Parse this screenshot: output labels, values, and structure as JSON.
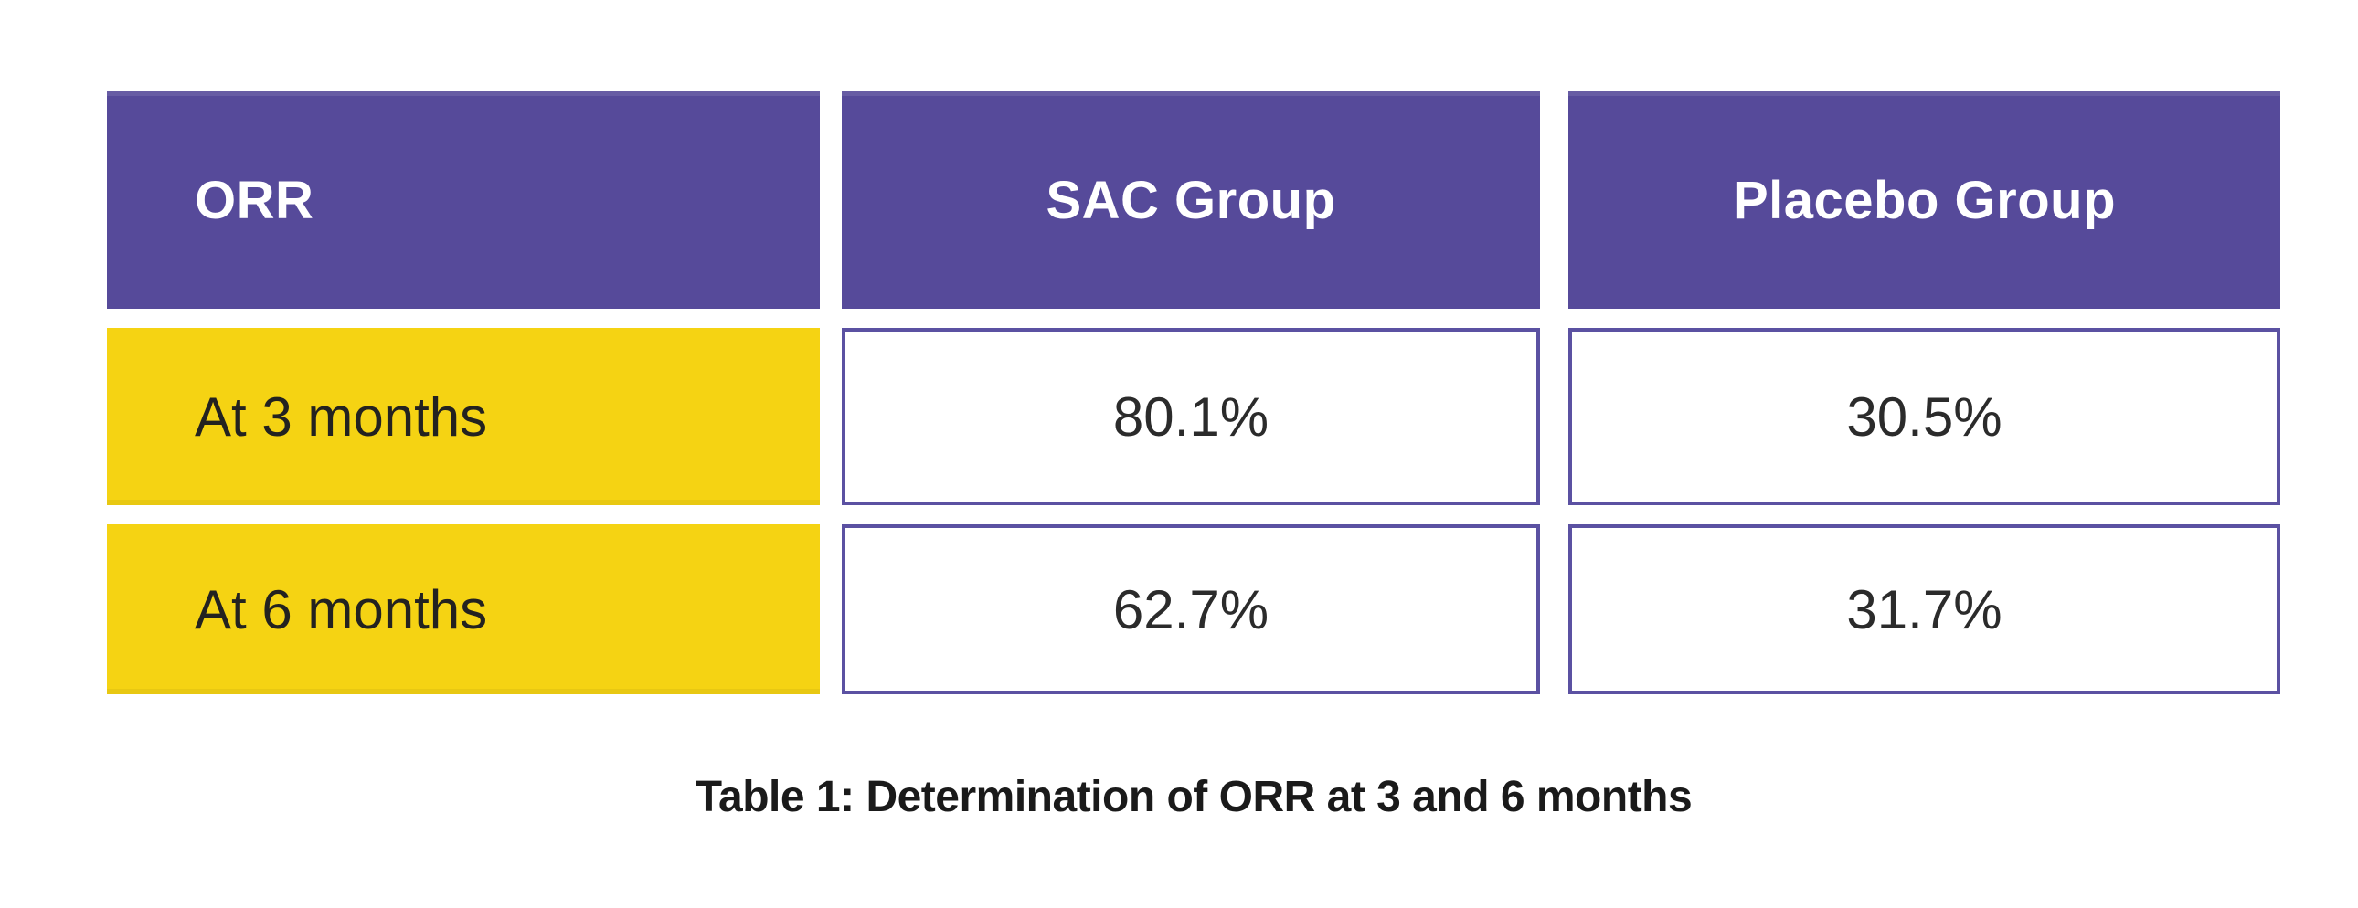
{
  "figure": {
    "caption": "Table 1: Determination of ORR at 3 and 6 months"
  },
  "table": {
    "headers": [
      {
        "label": "ORR"
      },
      {
        "label": "SAC Group"
      },
      {
        "label": "Placebo Group"
      }
    ],
    "rows": [
      {
        "label": "At 3 months",
        "values": [
          "80.1%",
          "30.5%"
        ]
      },
      {
        "label": "At 6 months",
        "values": [
          "62.7%",
          "31.7%"
        ]
      }
    ]
  },
  "colors": {
    "header_bg": "#564a9a",
    "header_text": "#ffffff",
    "row_label_bg": "#f5d313",
    "value_cell_bg": "#ffffff",
    "value_cell_border": "#5b51a2",
    "body_text": "#2b2b2b",
    "caption_text": "#1a1a1a",
    "background": "#ffffff"
  },
  "chart_data": {
    "type": "table",
    "title": "Table 1: Determination of ORR at 3 and 6 months",
    "columns": [
      "ORR",
      "SAC Group",
      "Placebo Group"
    ],
    "rows": [
      [
        "At 3 months",
        "80.1%",
        "30.5%"
      ],
      [
        "At 6 months",
        "62.7%",
        "31.7%"
      ]
    ],
    "series": [
      {
        "name": "SAC Group",
        "categories": [
          "At 3 months",
          "At 6 months"
        ],
        "values": [
          80.1,
          62.7
        ],
        "unit": "%"
      },
      {
        "name": "Placebo Group",
        "categories": [
          "At 3 months",
          "At 6 months"
        ],
        "values": [
          30.5,
          31.7
        ],
        "unit": "%"
      }
    ]
  }
}
